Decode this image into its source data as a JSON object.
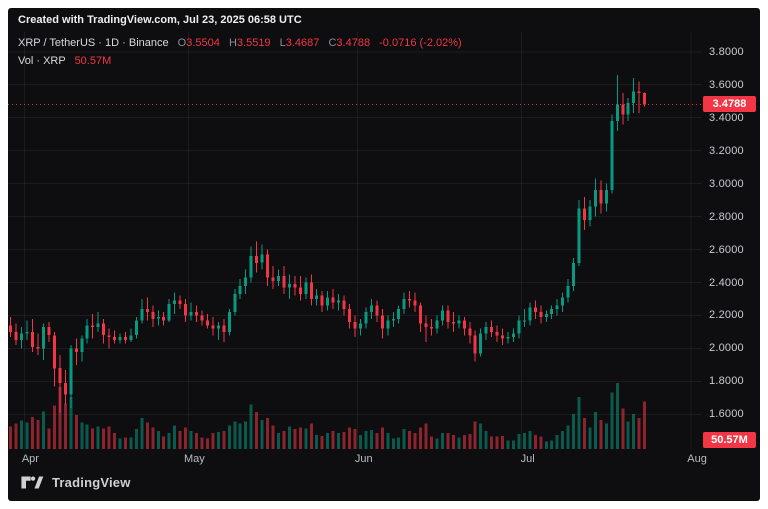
{
  "attribution": "Created with TradingView.com, Jul 23, 2025 06:58 UTC",
  "legend": {
    "series_title": "XRP / TetherUS · 1D · Binance",
    "ohlc": [
      {
        "label": "O",
        "value": "3.5504"
      },
      {
        "label": "H",
        "value": "3.5519"
      },
      {
        "label": "L",
        "value": "3.4687"
      },
      {
        "label": "C",
        "value": "3.4788"
      }
    ],
    "change": "-0.0716 (-2.02%)",
    "volume_label": "Vol · XRP",
    "volume_value": "50.57M"
  },
  "price_axis": {
    "ticks": [
      "3.8000",
      "3.6000",
      "3.4000",
      "3.2000",
      "3.0000",
      "2.8000",
      "2.6000",
      "2.4000",
      "2.2000",
      "2.0000",
      "1.8000",
      "1.6000"
    ],
    "last_price_label": "3.4788",
    "volume_badge": "50.57M"
  },
  "time_axis": {
    "labels": [
      {
        "text": "Apr",
        "index": 3
      },
      {
        "text": "May",
        "index": 33
      },
      {
        "text": "Jun",
        "index": 64
      },
      {
        "text": "Jul",
        "index": 94
      },
      {
        "text": "Aug",
        "index": 125
      }
    ]
  },
  "footer": {
    "brand": "TradingView"
  },
  "colors": {
    "up": "#089981",
    "down": "#f23645",
    "bg": "#0e0e10",
    "grid": "rgba(255,255,255,0.06)",
    "axis_text": "#caccd2",
    "badge": "#f23645"
  },
  "chart_data": {
    "type": "candlestick",
    "title": "XRP / TetherUS · 1D · Binance",
    "start_date": "2025-03-29",
    "interval": "1D",
    "ylim": [
      1.39,
      3.92
    ],
    "total_slots": 127,
    "last_close": 3.4788,
    "volume_unit": "millions",
    "columns": [
      "open",
      "high",
      "low",
      "close",
      "volumeM"
    ],
    "candles": [
      [
        2.14,
        2.19,
        2.07,
        2.1,
        24
      ],
      [
        2.1,
        2.15,
        2.02,
        2.05,
        27
      ],
      [
        2.05,
        2.13,
        2.0,
        2.09,
        30
      ],
      [
        2.09,
        2.17,
        2.05,
        2.1,
        28
      ],
      [
        2.1,
        2.18,
        1.98,
        2.01,
        34
      ],
      [
        2.01,
        2.09,
        1.96,
        2.0,
        31
      ],
      [
        2.0,
        2.15,
        1.93,
        2.13,
        40
      ],
      [
        2.13,
        2.16,
        2.04,
        2.08,
        22
      ],
      [
        2.08,
        2.1,
        1.77,
        1.88,
        46
      ],
      [
        1.88,
        1.96,
        1.61,
        1.79,
        66
      ],
      [
        1.79,
        1.87,
        1.66,
        1.72,
        48
      ],
      [
        1.72,
        2.02,
        1.64,
        2.0,
        55
      ],
      [
        2.0,
        2.06,
        1.9,
        1.98,
        36
      ],
      [
        1.98,
        2.08,
        1.92,
        2.06,
        28
      ],
      [
        2.06,
        2.18,
        2.03,
        2.14,
        26
      ],
      [
        2.14,
        2.21,
        2.06,
        2.13,
        22
      ],
      [
        2.13,
        2.22,
        2.1,
        2.15,
        24
      ],
      [
        2.15,
        2.18,
        2.03,
        2.08,
        22
      ],
      [
        2.08,
        2.12,
        2.0,
        2.07,
        24
      ],
      [
        2.07,
        2.11,
        2.03,
        2.05,
        17
      ],
      [
        2.05,
        2.09,
        2.03,
        2.07,
        11
      ],
      [
        2.07,
        2.1,
        2.03,
        2.05,
        12
      ],
      [
        2.05,
        2.12,
        2.04,
        2.08,
        12
      ],
      [
        2.08,
        2.19,
        2.06,
        2.17,
        21
      ],
      [
        2.17,
        2.3,
        2.15,
        2.24,
        33
      ],
      [
        2.24,
        2.31,
        2.17,
        2.22,
        28
      ],
      [
        2.22,
        2.26,
        2.13,
        2.18,
        23
      ],
      [
        2.18,
        2.23,
        2.14,
        2.19,
        19
      ],
      [
        2.19,
        2.22,
        2.14,
        2.17,
        13
      ],
      [
        2.17,
        2.3,
        2.16,
        2.27,
        17
      ],
      [
        2.27,
        2.34,
        2.21,
        2.29,
        25
      ],
      [
        2.29,
        2.32,
        2.24,
        2.27,
        19
      ],
      [
        2.27,
        2.3,
        2.16,
        2.2,
        23
      ],
      [
        2.2,
        2.28,
        2.17,
        2.22,
        19
      ],
      [
        2.22,
        2.26,
        2.16,
        2.2,
        17
      ],
      [
        2.2,
        2.23,
        2.14,
        2.17,
        12
      ],
      [
        2.17,
        2.21,
        2.12,
        2.14,
        11
      ],
      [
        2.14,
        2.19,
        2.08,
        2.12,
        17
      ],
      [
        2.12,
        2.16,
        2.05,
        2.14,
        18
      ],
      [
        2.14,
        2.18,
        2.04,
        2.1,
        19
      ],
      [
        2.1,
        2.24,
        2.08,
        2.22,
        25
      ],
      [
        2.22,
        2.36,
        2.2,
        2.33,
        29
      ],
      [
        2.33,
        2.42,
        2.3,
        2.38,
        27
      ],
      [
        2.38,
        2.48,
        2.33,
        2.43,
        29
      ],
      [
        2.43,
        2.62,
        2.4,
        2.56,
        47
      ],
      [
        2.56,
        2.65,
        2.46,
        2.52,
        39
      ],
      [
        2.52,
        2.63,
        2.48,
        2.57,
        31
      ],
      [
        2.57,
        2.6,
        2.38,
        2.43,
        33
      ],
      [
        2.43,
        2.5,
        2.36,
        2.41,
        25
      ],
      [
        2.41,
        2.48,
        2.38,
        2.44,
        17
      ],
      [
        2.44,
        2.5,
        2.33,
        2.37,
        19
      ],
      [
        2.37,
        2.45,
        2.3,
        2.39,
        24
      ],
      [
        2.39,
        2.44,
        2.32,
        2.37,
        21
      ],
      [
        2.37,
        2.44,
        2.29,
        2.33,
        23
      ],
      [
        2.33,
        2.43,
        2.3,
        2.4,
        22
      ],
      [
        2.4,
        2.45,
        2.26,
        2.3,
        27
      ],
      [
        2.3,
        2.36,
        2.26,
        2.32,
        15
      ],
      [
        2.32,
        2.35,
        2.22,
        2.26,
        14
      ],
      [
        2.26,
        2.35,
        2.23,
        2.31,
        17
      ],
      [
        2.31,
        2.36,
        2.24,
        2.28,
        19
      ],
      [
        2.28,
        2.33,
        2.23,
        2.29,
        17
      ],
      [
        2.29,
        2.32,
        2.2,
        2.24,
        18
      ],
      [
        2.24,
        2.27,
        2.12,
        2.16,
        23
      ],
      [
        2.16,
        2.2,
        2.07,
        2.12,
        21
      ],
      [
        2.12,
        2.18,
        2.08,
        2.15,
        15
      ],
      [
        2.15,
        2.25,
        2.12,
        2.22,
        19
      ],
      [
        2.22,
        2.3,
        2.18,
        2.26,
        20
      ],
      [
        2.26,
        2.29,
        2.16,
        2.2,
        17
      ],
      [
        2.2,
        2.24,
        2.06,
        2.12,
        23
      ],
      [
        2.12,
        2.2,
        2.08,
        2.17,
        17
      ],
      [
        2.17,
        2.22,
        2.13,
        2.18,
        11
      ],
      [
        2.18,
        2.26,
        2.15,
        2.24,
        12
      ],
      [
        2.24,
        2.34,
        2.21,
        2.3,
        21
      ],
      [
        2.3,
        2.35,
        2.25,
        2.29,
        19
      ],
      [
        2.29,
        2.34,
        2.22,
        2.26,
        17
      ],
      [
        2.26,
        2.28,
        2.1,
        2.15,
        23
      ],
      [
        2.15,
        2.2,
        2.04,
        2.13,
        27
      ],
      [
        2.13,
        2.18,
        2.08,
        2.12,
        13
      ],
      [
        2.12,
        2.2,
        2.09,
        2.17,
        11
      ],
      [
        2.17,
        2.26,
        2.14,
        2.23,
        17
      ],
      [
        2.23,
        2.26,
        2.12,
        2.16,
        17
      ],
      [
        2.16,
        2.22,
        2.1,
        2.15,
        15
      ],
      [
        2.15,
        2.2,
        2.12,
        2.17,
        12
      ],
      [
        2.17,
        2.19,
        2.08,
        2.12,
        15
      ],
      [
        2.12,
        2.16,
        2.03,
        2.08,
        16
      ],
      [
        2.08,
        2.11,
        1.92,
        1.97,
        29
      ],
      [
        1.97,
        2.12,
        1.95,
        2.09,
        27
      ],
      [
        2.09,
        2.16,
        2.05,
        2.13,
        19
      ],
      [
        2.13,
        2.17,
        2.07,
        2.1,
        13
      ],
      [
        2.1,
        2.14,
        2.04,
        2.08,
        13
      ],
      [
        2.08,
        2.12,
        2.02,
        2.06,
        14
      ],
      [
        2.06,
        2.1,
        2.03,
        2.07,
        9
      ],
      [
        2.07,
        2.12,
        2.04,
        2.09,
        9
      ],
      [
        2.09,
        2.2,
        2.06,
        2.17,
        16
      ],
      [
        2.17,
        2.24,
        2.13,
        2.17,
        17
      ],
      [
        2.17,
        2.28,
        2.14,
        2.25,
        19
      ],
      [
        2.25,
        2.29,
        2.18,
        2.22,
        15
      ],
      [
        2.22,
        2.26,
        2.15,
        2.19,
        13
      ],
      [
        2.19,
        2.23,
        2.16,
        2.21,
        8
      ],
      [
        2.21,
        2.26,
        2.18,
        2.24,
        9
      ],
      [
        2.24,
        2.3,
        2.2,
        2.26,
        15
      ],
      [
        2.26,
        2.34,
        2.22,
        2.31,
        19
      ],
      [
        2.31,
        2.42,
        2.28,
        2.38,
        25
      ],
      [
        2.38,
        2.55,
        2.35,
        2.52,
        37
      ],
      [
        2.52,
        2.9,
        2.5,
        2.85,
        55
      ],
      [
        2.85,
        2.92,
        2.72,
        2.78,
        33
      ],
      [
        2.78,
        2.9,
        2.74,
        2.86,
        23
      ],
      [
        2.86,
        3.03,
        2.8,
        2.96,
        39
      ],
      [
        2.96,
        3.02,
        2.82,
        2.88,
        31
      ],
      [
        2.88,
        3.0,
        2.83,
        2.96,
        27
      ],
      [
        2.96,
        3.42,
        2.94,
        3.38,
        60
      ],
      [
        3.38,
        3.66,
        3.32,
        3.48,
        70
      ],
      [
        3.48,
        3.55,
        3.36,
        3.42,
        43
      ],
      [
        3.42,
        3.52,
        3.38,
        3.49,
        29
      ],
      [
        3.49,
        3.64,
        3.43,
        3.56,
        37
      ],
      [
        3.56,
        3.62,
        3.43,
        3.5504,
        33
      ],
      [
        3.5504,
        3.5519,
        3.4687,
        3.4788,
        50.57
      ]
    ]
  }
}
